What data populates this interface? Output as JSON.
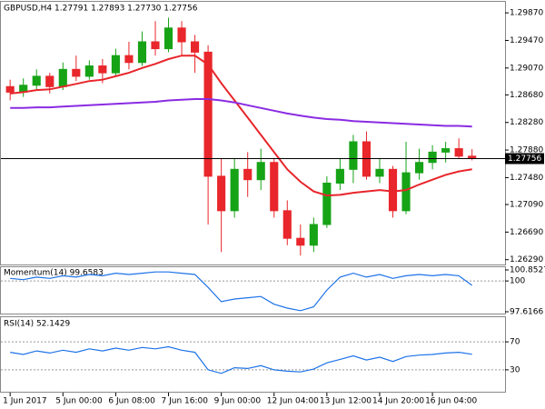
{
  "chart_data": [
    {
      "type": "candlestick",
      "title": "GBPUSD,H4  1.27791 1.27893 1.27730 1.27756",
      "up_color": "#16a316",
      "down_color": "#e8262b",
      "open": [
        1.288,
        1.2872,
        1.2882,
        1.2895,
        1.288,
        1.2905,
        1.2895,
        1.291,
        1.29,
        1.2925,
        1.2915,
        1.2945,
        1.2935,
        1.2965,
        1.2945,
        1.293,
        1.275,
        1.27,
        1.276,
        1.2745,
        1.277,
        1.27,
        1.266,
        1.265,
        1.268,
        1.274,
        1.276,
        1.28,
        1.275,
        1.276,
        1.27,
        1.2755,
        1.277,
        1.2785,
        1.279,
        1.27791
      ],
      "high": [
        1.289,
        1.2892,
        1.2905,
        1.29,
        1.2915,
        1.2925,
        1.2918,
        1.292,
        1.2935,
        1.2945,
        1.296,
        1.2975,
        1.298,
        1.2975,
        1.2955,
        1.294,
        1.2775,
        1.2775,
        1.2785,
        1.279,
        1.2775,
        1.2715,
        1.268,
        1.269,
        1.275,
        1.2775,
        1.281,
        1.2815,
        1.2775,
        1.2765,
        1.28,
        1.279,
        1.2795,
        1.28,
        1.2805,
        1.27893
      ],
      "low": [
        1.286,
        1.2865,
        1.2875,
        1.287,
        1.2875,
        1.2888,
        1.289,
        1.2885,
        1.2895,
        1.2905,
        1.291,
        1.2925,
        1.293,
        1.2925,
        1.29,
        1.268,
        1.264,
        1.269,
        1.272,
        1.273,
        1.269,
        1.265,
        1.2635,
        1.264,
        1.2675,
        1.273,
        1.274,
        1.2745,
        1.274,
        1.269,
        1.2695,
        1.2745,
        1.276,
        1.277,
        1.2775,
        1.2773
      ],
      "close": [
        1.2872,
        1.2882,
        1.2895,
        1.288,
        1.2905,
        1.2895,
        1.291,
        1.29,
        1.2925,
        1.2915,
        1.2945,
        1.2935,
        1.2965,
        1.2945,
        1.293,
        1.275,
        1.27,
        1.276,
        1.2745,
        1.277,
        1.27,
        1.266,
        1.265,
        1.268,
        1.274,
        1.276,
        1.28,
        1.275,
        1.276,
        1.27,
        1.2755,
        1.277,
        1.2785,
        1.279,
        1.27791,
        1.27756
      ],
      "lines": [
        {
          "color": "#e8262b",
          "values": [
            1.287,
            1.2872,
            1.2875,
            1.2876,
            1.288,
            1.2884,
            1.2888,
            1.289,
            1.2895,
            1.29,
            1.2907,
            1.2913,
            1.292,
            1.2925,
            1.2925,
            1.2912,
            1.2885,
            1.286,
            1.2835,
            1.281,
            1.2785,
            1.276,
            1.2742,
            1.2728,
            1.2722,
            1.2723,
            1.2726,
            1.2728,
            1.273,
            1.2728,
            1.273,
            1.2738,
            1.2745,
            1.2752,
            1.2757,
            1.276
          ]
        },
        {
          "color": "#8a2be2",
          "values": [
            1.2849,
            1.2849,
            1.285,
            1.285,
            1.2851,
            1.2852,
            1.2853,
            1.2854,
            1.2855,
            1.2856,
            1.2857,
            1.2858,
            1.286,
            1.2861,
            1.2862,
            1.2862,
            1.286,
            1.2857,
            1.2853,
            1.2849,
            1.2845,
            1.2841,
            1.2838,
            1.2835,
            1.2833,
            1.2832,
            1.283,
            1.2829,
            1.2828,
            1.2827,
            1.2826,
            1.2825,
            1.2824,
            1.2823,
            1.2823,
            1.2822
          ]
        }
      ],
      "current_price": {
        "value": 1.27756,
        "label": "1.27756"
      },
      "xlim": [
        -0.7,
        37.5
      ],
      "ylim": [
        1.2622,
        1.3003
      ],
      "yticks": [
        {
          "value": 1.2987,
          "label": "1.29870"
        },
        {
          "value": 1.2947,
          "label": "1.29470"
        },
        {
          "value": 1.2907,
          "label": "1.29070"
        },
        {
          "value": 1.2868,
          "label": "1.28680"
        },
        {
          "value": 1.2828,
          "label": "1.28280"
        },
        {
          "value": 1.2788,
          "label": "1.27880"
        },
        {
          "value": 1.2748,
          "label": "1.27480"
        },
        {
          "value": 1.2709,
          "label": "1.27090"
        },
        {
          "value": 1.2669,
          "label": "1.26690"
        },
        {
          "value": 1.2629,
          "label": "1.26290"
        }
      ]
    },
    {
      "type": "line",
      "title": "Momentum(14) 99.6583",
      "series": [
        {
          "color": "#1e73e8",
          "values": [
            100.2,
            100.1,
            100.3,
            100.2,
            100.4,
            100.3,
            100.5,
            100.4,
            100.6,
            100.5,
            100.6,
            100.7,
            100.7,
            100.6,
            100.5,
            99.5,
            98.4,
            98.6,
            98.7,
            98.8,
            98.2,
            97.9,
            97.7,
            98.0,
            99.3,
            100.3,
            100.6,
            100.3,
            100.5,
            100.2,
            100.4,
            100.5,
            100.4,
            100.5,
            100.4,
            99.6583
          ]
        }
      ],
      "levels": [
        100
      ],
      "xlim": [
        -0.7,
        37.5
      ],
      "ylim": [
        97.6166,
        100.8527
      ],
      "yticks": [
        97.6166,
        100,
        100.8527
      ]
    },
    {
      "type": "line",
      "title": "RSI(14) 52.1429",
      "series": [
        {
          "color": "#1e73e8",
          "values": [
            55,
            52,
            57,
            54,
            58,
            55,
            60,
            57,
            61,
            58,
            62,
            60,
            63,
            58,
            55,
            30,
            25,
            33,
            32,
            36,
            30,
            28,
            27,
            31,
            40,
            45,
            50,
            44,
            48,
            42,
            49,
            51,
            52,
            54,
            55,
            52.1429
          ]
        }
      ],
      "levels": [
        70,
        30
      ],
      "xlim": [
        -0.7,
        37.5
      ],
      "ylim": [
        0,
        100
      ],
      "yticks": [
        30,
        70
      ],
      "xticks": [
        {
          "value": 0,
          "label": "1 Jun 2017"
        },
        {
          "value": 4,
          "label": "5 Jun 00:00"
        },
        {
          "value": 8,
          "label": "6 Jun 08:00"
        },
        {
          "value": 12,
          "label": "7 Jun 16:00"
        },
        {
          "value": 16,
          "label": "9 Jun 00:00"
        },
        {
          "value": 20,
          "label": "12 Jun 04:00"
        },
        {
          "value": 24,
          "label": "13 Jun 12:00"
        },
        {
          "value": 28,
          "label": "14 Jun 20:00"
        },
        {
          "value": 32,
          "label": "16 Jun 04:00"
        }
      ]
    }
  ]
}
